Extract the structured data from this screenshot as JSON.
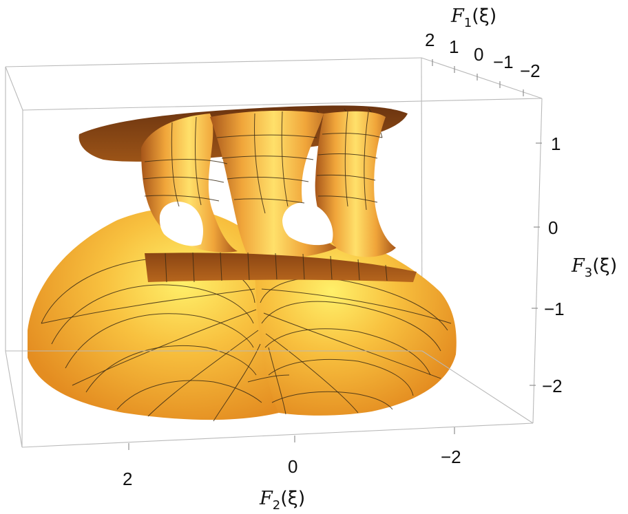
{
  "chart_data": {
    "type": "surface3d",
    "axes": {
      "x": {
        "label_var": "F",
        "label_sub": "2",
        "label_arg": "(ξ)",
        "ticks": [
          "2",
          "0",
          "−2"
        ]
      },
      "y": {
        "label_var": "F",
        "label_sub": "1",
        "label_arg": "(ξ)",
        "ticks": [
          "2",
          "1",
          "0",
          "−1",
          "−2"
        ]
      },
      "z": {
        "label_var": "F",
        "label_sub": "3",
        "label_arg": "(ξ)",
        "ticks": [
          "1",
          "0",
          "−1",
          "−2"
        ]
      }
    },
    "bounding_box": true,
    "surface_colors": {
      "light": "#ffdf57",
      "mid": "#f2a530",
      "dark": "#7a3f10",
      "mesh": "#3a2a14"
    }
  }
}
